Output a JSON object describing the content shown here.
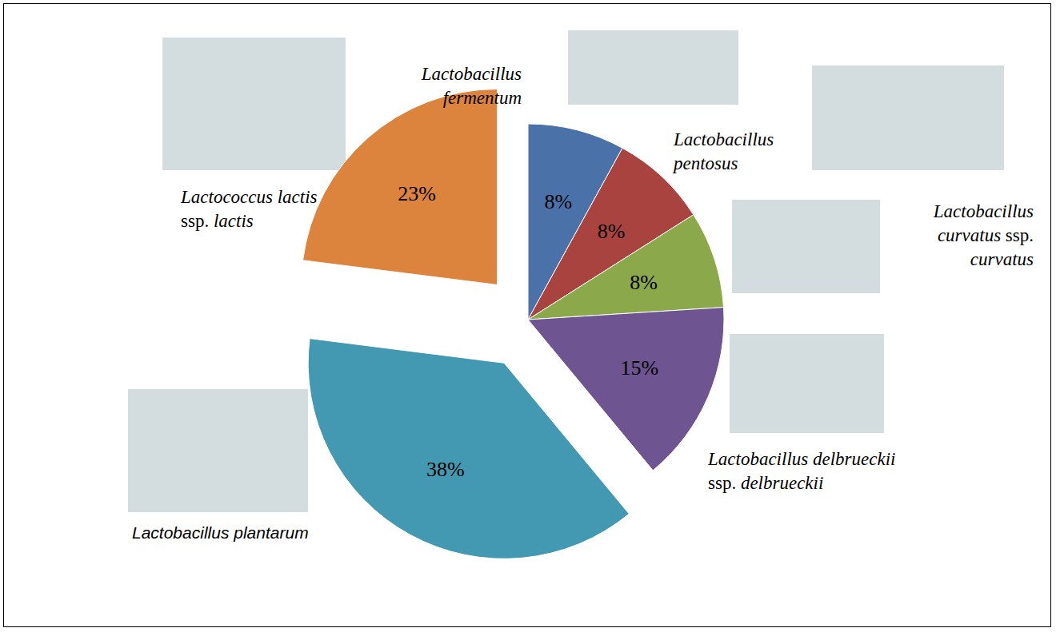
{
  "chart_data": {
    "type": "pie",
    "categories": [
      "Lactobacillus fermentum",
      "Lactobacillus pentosus",
      "Lactobacillus curvatus ssp. curvatus",
      "Lactobacillus delbrueckii ssp. delbrueckii",
      "Lactobacillus plantarum",
      "Lactococcus lactis ssp. lactis"
    ],
    "values": [
      8,
      8,
      8,
      15,
      38,
      23
    ],
    "value_labels": [
      "8%",
      "8%",
      "8%",
      "15%",
      "38%",
      "23%"
    ],
    "colors": [
      "#4a72a8",
      "#a8433f",
      "#8ba84a",
      "#6e5490",
      "#4399b1",
      "#dc843e"
    ],
    "data_labels": true
  }
}
